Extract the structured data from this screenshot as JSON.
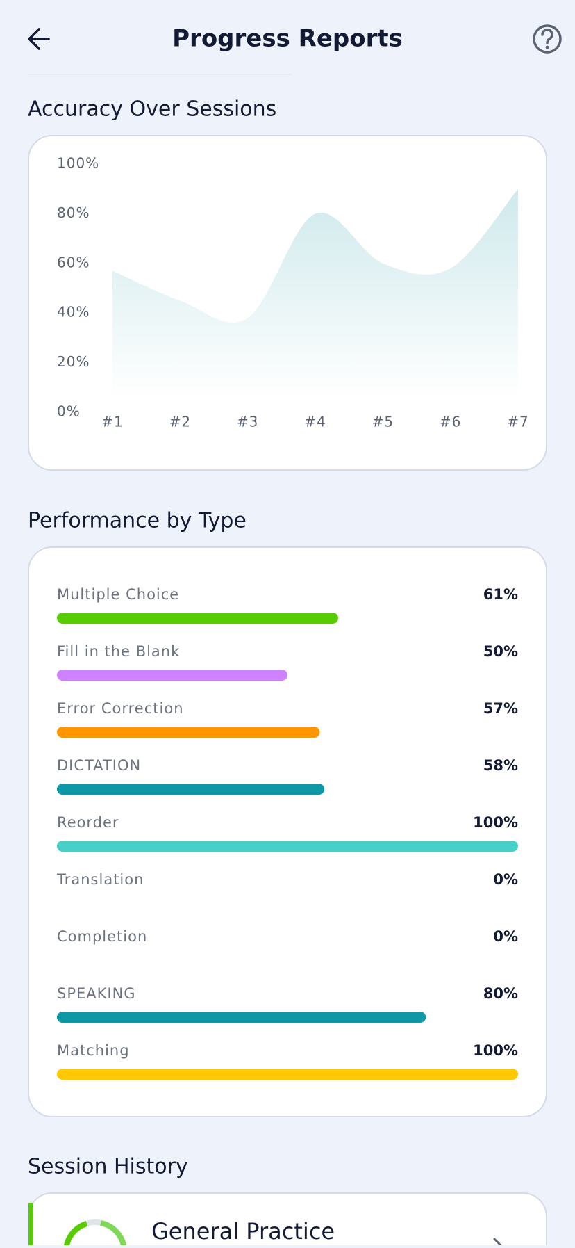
{
  "header": {
    "title": "Progress Reports"
  },
  "accuracy": {
    "title": "Accuracy Over Sessions",
    "chart": {
      "type": "area",
      "categories": [
        "#1",
        "#2",
        "#3",
        "#4",
        "#5",
        "#6",
        "#7"
      ],
      "values": [
        57,
        45,
        38,
        80,
        60,
        58,
        90
      ],
      "color": "#cfe9ec",
      "ylim": [
        0,
        100
      ],
      "yticks": [
        {
          "value": 0,
          "label": "0%"
        },
        {
          "value": 20,
          "label": "20%"
        },
        {
          "value": 40,
          "label": "40%"
        },
        {
          "value": 60,
          "label": "60%"
        },
        {
          "value": 80,
          "label": "80%"
        },
        {
          "value": 100,
          "label": "100%"
        }
      ]
    }
  },
  "performance": {
    "title": "Performance by Type",
    "xlim": [
      0,
      100
    ],
    "items": [
      {
        "name": "Multiple Choice",
        "value": 61,
        "value_label": "61%",
        "color": "#58cc02"
      },
      {
        "name": "Fill in the Blank",
        "value": 50,
        "value_label": "50%",
        "color": "#ce82ff"
      },
      {
        "name": "Error Correction",
        "value": 57,
        "value_label": "57%",
        "color": "#ff9600"
      },
      {
        "name": "DICTATION",
        "value": 58,
        "value_label": "58%",
        "color": "#0e97a5"
      },
      {
        "name": "Reorder",
        "value": 100,
        "value_label": "100%",
        "color": "#48cfc8"
      },
      {
        "name": "Translation",
        "value": 0,
        "value_label": "0%",
        "color": "#1cb0f6"
      },
      {
        "name": "Completion",
        "value": 0,
        "value_label": "0%",
        "color": "#1cb0f6"
      },
      {
        "name": "SPEAKING",
        "value": 80,
        "value_label": "80%",
        "color": "#0e97a5"
      },
      {
        "name": "Matching",
        "value": 100,
        "value_label": "100%",
        "color": "#ffc800"
      }
    ]
  },
  "history": {
    "title": "Session History",
    "items": [
      {
        "title": "General Practice"
      }
    ]
  }
}
